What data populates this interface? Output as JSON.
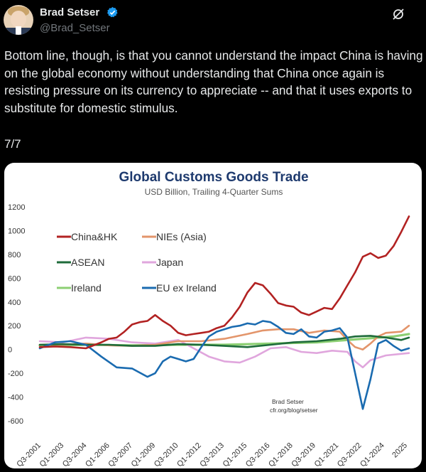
{
  "author": {
    "name": "Brad Setser",
    "handle": "@Brad_Setser",
    "verified_icon": "verified-badge-icon",
    "avatar_icon": "avatar"
  },
  "actions": {
    "more_icon": "grok-slash-icon"
  },
  "tweet": {
    "paragraphs": [
      "Bottom line, though, is that you cannot understand the impact China is having on the global economy without understanding that China once again is resisting pressure on its currency to appreciate -- and that it uses exports to substitute for domestic stimulus.",
      "7/7"
    ]
  },
  "chart_data": {
    "type": "line",
    "title": "Global Customs Goods Trade",
    "subtitle": "USD Billion, Trailing 4-Quarter Sums",
    "ylim": [
      -600,
      1200
    ],
    "yticks": [
      1200,
      1000,
      800,
      600,
      400,
      200,
      0,
      -200,
      -400,
      -600
    ],
    "xticks": [
      "Q3-2001",
      "Q1-2003",
      "Q3-2004",
      "Q1-2006",
      "Q3-2007",
      "Q1-2009",
      "Q3-2010",
      "Q1-2012",
      "Q3-2013",
      "Q1-2015",
      "Q3-2016",
      "Q1-2018",
      "Q3-2019",
      "Q1-2021",
      "Q3-2022",
      "Q1-2024",
      "2025"
    ],
    "annotation": [
      "Brad Setser",
      "cfr.org/blog/setser"
    ],
    "legend_position": "top-left",
    "series": [
      {
        "name": "China&HK",
        "color": "#b22222",
        "values": [
          [
            2001.5,
            20
          ],
          [
            2002.5,
            25
          ],
          [
            2003.5,
            20
          ],
          [
            2004.5,
            10
          ],
          [
            2005.5,
            60
          ],
          [
            2006.0,
            90
          ],
          [
            2006.5,
            100
          ],
          [
            2007.0,
            150
          ],
          [
            2007.5,
            210
          ],
          [
            2008.0,
            230
          ],
          [
            2008.5,
            240
          ],
          [
            2009.0,
            290
          ],
          [
            2009.5,
            240
          ],
          [
            2010.0,
            200
          ],
          [
            2010.5,
            140
          ],
          [
            2011.0,
            120
          ],
          [
            2011.5,
            130
          ],
          [
            2012.0,
            140
          ],
          [
            2012.5,
            150
          ],
          [
            2013.0,
            180
          ],
          [
            2013.5,
            200
          ],
          [
            2014.0,
            270
          ],
          [
            2014.5,
            360
          ],
          [
            2015.0,
            480
          ],
          [
            2015.5,
            560
          ],
          [
            2016.0,
            540
          ],
          [
            2016.5,
            470
          ],
          [
            2017.0,
            390
          ],
          [
            2017.5,
            370
          ],
          [
            2018.0,
            360
          ],
          [
            2018.5,
            310
          ],
          [
            2019.0,
            290
          ],
          [
            2019.5,
            320
          ],
          [
            2020.0,
            350
          ],
          [
            2020.5,
            340
          ],
          [
            2021.0,
            430
          ],
          [
            2021.5,
            540
          ],
          [
            2022.0,
            650
          ],
          [
            2022.5,
            780
          ],
          [
            2023.0,
            810
          ],
          [
            2023.5,
            770
          ],
          [
            2024.0,
            790
          ],
          [
            2024.5,
            870
          ],
          [
            2025.0,
            990
          ],
          [
            2025.5,
            1120
          ]
        ]
      },
      {
        "name": "NIEs (Asia)",
        "color": "#e3956b",
        "values": [
          [
            2001.5,
            40
          ],
          [
            2003.0,
            40
          ],
          [
            2004.5,
            50
          ],
          [
            2006.0,
            35
          ],
          [
            2007.5,
            30
          ],
          [
            2009.0,
            40
          ],
          [
            2010.5,
            70
          ],
          [
            2012.0,
            70
          ],
          [
            2013.5,
            90
          ],
          [
            2015.0,
            130
          ],
          [
            2016.0,
            160
          ],
          [
            2017.0,
            170
          ],
          [
            2018.0,
            170
          ],
          [
            2019.0,
            140
          ],
          [
            2020.0,
            160
          ],
          [
            2021.0,
            150
          ],
          [
            2021.5,
            80
          ],
          [
            2022.0,
            20
          ],
          [
            2022.5,
            0
          ],
          [
            2023.0,
            50
          ],
          [
            2023.5,
            110
          ],
          [
            2024.0,
            140
          ],
          [
            2025.0,
            150
          ],
          [
            2025.5,
            200
          ]
        ]
      },
      {
        "name": "ASEAN",
        "color": "#1e6b3a",
        "values": [
          [
            2001.5,
            40
          ],
          [
            2003.0,
            45
          ],
          [
            2004.5,
            40
          ],
          [
            2006.0,
            40
          ],
          [
            2007.5,
            30
          ],
          [
            2009.0,
            30
          ],
          [
            2010.5,
            45
          ],
          [
            2012.0,
            40
          ],
          [
            2013.5,
            30
          ],
          [
            2015.0,
            20
          ],
          [
            2016.5,
            40
          ],
          [
            2018.0,
            60
          ],
          [
            2019.5,
            70
          ],
          [
            2021.0,
            90
          ],
          [
            2022.0,
            110
          ],
          [
            2023.0,
            115
          ],
          [
            2024.0,
            100
          ],
          [
            2025.0,
            80
          ],
          [
            2025.5,
            100
          ]
        ]
      },
      {
        "name": "Japan",
        "color": "#e0a6dd",
        "values": [
          [
            2001.5,
            70
          ],
          [
            2003.0,
            60
          ],
          [
            2004.5,
            100
          ],
          [
            2006.0,
            90
          ],
          [
            2007.5,
            60
          ],
          [
            2009.0,
            50
          ],
          [
            2010.5,
            80
          ],
          [
            2011.5,
            10
          ],
          [
            2012.5,
            -60
          ],
          [
            2013.5,
            -100
          ],
          [
            2014.5,
            -110
          ],
          [
            2015.5,
            -60
          ],
          [
            2016.5,
            10
          ],
          [
            2017.5,
            20
          ],
          [
            2018.5,
            -20
          ],
          [
            2019.5,
            -30
          ],
          [
            2020.5,
            -10
          ],
          [
            2021.5,
            -20
          ],
          [
            2022.0,
            -100
          ],
          [
            2022.5,
            -150
          ],
          [
            2023.0,
            -90
          ],
          [
            2024.0,
            -50
          ],
          [
            2025.5,
            -30
          ]
        ]
      },
      {
        "name": "Ireland",
        "color": "#8ccf73",
        "values": [
          [
            2001.5,
            35
          ],
          [
            2004.5,
            40
          ],
          [
            2007.5,
            35
          ],
          [
            2010.5,
            40
          ],
          [
            2013.5,
            40
          ],
          [
            2016.5,
            50
          ],
          [
            2019.5,
            60
          ],
          [
            2022.5,
            90
          ],
          [
            2024.5,
            110
          ],
          [
            2025.5,
            130
          ]
        ]
      },
      {
        "name": "EU ex Ireland",
        "color": "#1a6bb0",
        "values": [
          [
            2001.5,
            10
          ],
          [
            2002.5,
            60
          ],
          [
            2003.5,
            70
          ],
          [
            2004.5,
            40
          ],
          [
            2005.5,
            -60
          ],
          [
            2006.5,
            -150
          ],
          [
            2007.5,
            -160
          ],
          [
            2008.5,
            -230
          ],
          [
            2009.0,
            -200
          ],
          [
            2009.5,
            -100
          ],
          [
            2010.0,
            -60
          ],
          [
            2010.5,
            -80
          ],
          [
            2011.0,
            -100
          ],
          [
            2011.5,
            -80
          ],
          [
            2012.0,
            20
          ],
          [
            2012.5,
            110
          ],
          [
            2013.0,
            150
          ],
          [
            2013.5,
            170
          ],
          [
            2014.0,
            190
          ],
          [
            2014.5,
            200
          ],
          [
            2015.0,
            220
          ],
          [
            2015.5,
            210
          ],
          [
            2016.0,
            240
          ],
          [
            2016.5,
            230
          ],
          [
            2017.0,
            190
          ],
          [
            2017.5,
            140
          ],
          [
            2018.0,
            130
          ],
          [
            2018.5,
            170
          ],
          [
            2019.0,
            110
          ],
          [
            2019.5,
            100
          ],
          [
            2020.0,
            150
          ],
          [
            2020.5,
            160
          ],
          [
            2021.0,
            180
          ],
          [
            2021.5,
            100
          ],
          [
            2022.0,
            -200
          ],
          [
            2022.5,
            -500
          ],
          [
            2023.0,
            -250
          ],
          [
            2023.5,
            50
          ],
          [
            2024.0,
            80
          ],
          [
            2024.5,
            30
          ],
          [
            2025.0,
            -10
          ],
          [
            2025.5,
            10
          ]
        ]
      }
    ]
  }
}
